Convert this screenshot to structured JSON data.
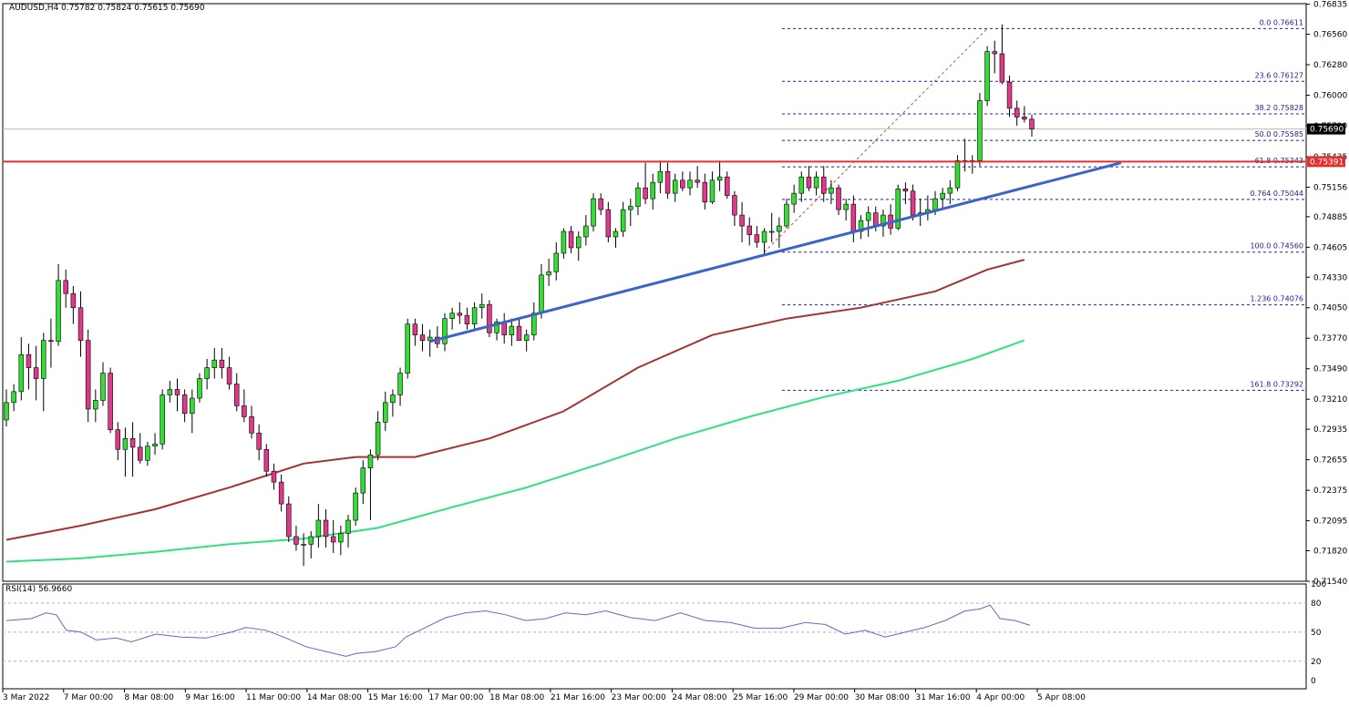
{
  "header": {
    "symbol_line": "AUDUSD,H4  0.75782 0.75824 0.75615 0.75690",
    "rsi_label": "RSI(14) 56.9660"
  },
  "colors": {
    "bull": "#33dd33",
    "bear": "#e0388a",
    "wick": "#000000",
    "sma100": "#a83030",
    "sma200": "#33e080",
    "trendline": "#3a64c8",
    "resistance": "#e53030",
    "fib": "#2020a0",
    "rsi": "#8a58b8"
  },
  "chart_data": [
    {
      "type": "candlestick",
      "symbol": "AUDUSD",
      "timeframe": "H4",
      "ylim": [
        0.7154,
        0.7684
      ],
      "price_ticks": [
        "0.76835",
        "0.76560",
        "0.76280",
        "0.76000",
        "0.75720",
        "0.75435",
        "0.75156",
        "0.74885",
        "0.74605",
        "0.74330",
        "0.74050",
        "0.73770",
        "0.73490",
        "0.73210",
        "0.72935",
        "0.72655",
        "0.72375",
        "0.72095",
        "0.71820",
        "0.71540"
      ],
      "x_labels": [
        "3 Mar 2022",
        "7 Mar 00:00",
        "8 Mar 08:00",
        "9 Mar 16:00",
        "11 Mar 00:00",
        "14 Mar 08:00",
        "15 Mar 16:00",
        "17 Mar 00:00",
        "18 Mar 08:00",
        "21 Mar 16:00",
        "23 Mar 00:00",
        "24 Mar 08:00",
        "25 Mar 16:00",
        "29 Mar 00:00",
        "30 Mar 08:00",
        "31 Mar 16:00",
        "4 Apr 00:00",
        "5 Apr 08:00"
      ],
      "candles": [
        [
          0.7302,
          0.733,
          0.7296,
          0.7318
        ],
        [
          0.7318,
          0.7335,
          0.731,
          0.7328
        ],
        [
          0.7328,
          0.7378,
          0.732,
          0.7362
        ],
        [
          0.7362,
          0.7372,
          0.733,
          0.735
        ],
        [
          0.735,
          0.737,
          0.732,
          0.734
        ],
        [
          0.734,
          0.7382,
          0.731,
          0.7375
        ],
        [
          0.7375,
          0.7395,
          0.735,
          0.7374
        ],
        [
          0.7374,
          0.7445,
          0.737,
          0.743
        ],
        [
          0.743,
          0.744,
          0.7405,
          0.7418
        ],
        [
          0.7418,
          0.7425,
          0.739,
          0.7405
        ],
        [
          0.7405,
          0.742,
          0.736,
          0.7375
        ],
        [
          0.7375,
          0.7385,
          0.73,
          0.7312
        ],
        [
          0.7312,
          0.733,
          0.73,
          0.732
        ],
        [
          0.732,
          0.7355,
          0.7315,
          0.7345
        ],
        [
          0.7345,
          0.735,
          0.729,
          0.7293
        ],
        [
          0.7293,
          0.73,
          0.7265,
          0.7275
        ],
        [
          0.7275,
          0.7295,
          0.725,
          0.7285
        ],
        [
          0.7285,
          0.73,
          0.725,
          0.7277
        ],
        [
          0.7277,
          0.729,
          0.7262,
          0.7265
        ],
        [
          0.7265,
          0.7282,
          0.726,
          0.7278
        ],
        [
          0.7278,
          0.729,
          0.727,
          0.728
        ],
        [
          0.728,
          0.733,
          0.7275,
          0.7325
        ],
        [
          0.7325,
          0.7338,
          0.7318,
          0.733
        ],
        [
          0.733,
          0.734,
          0.731,
          0.7325
        ],
        [
          0.7325,
          0.733,
          0.73,
          0.7308
        ],
        [
          0.7308,
          0.733,
          0.729,
          0.7322
        ],
        [
          0.7322,
          0.7345,
          0.7318,
          0.734
        ],
        [
          0.734,
          0.7358,
          0.733,
          0.735
        ],
        [
          0.735,
          0.7368,
          0.734,
          0.7357
        ],
        [
          0.7357,
          0.7368,
          0.734,
          0.735
        ],
        [
          0.735,
          0.736,
          0.733,
          0.7335
        ],
        [
          0.7335,
          0.7345,
          0.731,
          0.7315
        ],
        [
          0.7315,
          0.733,
          0.73,
          0.7305
        ],
        [
          0.7305,
          0.7315,
          0.7285,
          0.729
        ],
        [
          0.729,
          0.7298,
          0.7265,
          0.7275
        ],
        [
          0.7275,
          0.728,
          0.725,
          0.7255
        ],
        [
          0.7255,
          0.7262,
          0.7238,
          0.7245
        ],
        [
          0.7245,
          0.7252,
          0.7218,
          0.7225
        ],
        [
          0.7225,
          0.7232,
          0.719,
          0.7195
        ],
        [
          0.7195,
          0.7205,
          0.7182,
          0.7188
        ],
        [
          0.7188,
          0.7198,
          0.7168,
          0.7188
        ],
        [
          0.7188,
          0.72,
          0.7175,
          0.7195
        ],
        [
          0.7195,
          0.7225,
          0.7185,
          0.721
        ],
        [
          0.721,
          0.722,
          0.7185,
          0.7195
        ],
        [
          0.7195,
          0.721,
          0.718,
          0.719
        ],
        [
          0.719,
          0.7205,
          0.7178,
          0.7198
        ],
        [
          0.7198,
          0.7215,
          0.7185,
          0.721
        ],
        [
          0.721,
          0.724,
          0.7205,
          0.7235
        ],
        [
          0.7235,
          0.7265,
          0.7225,
          0.7258
        ],
        [
          0.7258,
          0.7275,
          0.721,
          0.727
        ],
        [
          0.727,
          0.731,
          0.7265,
          0.73
        ],
        [
          0.73,
          0.7328,
          0.7292,
          0.7318
        ],
        [
          0.7318,
          0.733,
          0.7305,
          0.7325
        ],
        [
          0.7325,
          0.735,
          0.7315,
          0.7345
        ],
        [
          0.7345,
          0.7395,
          0.734,
          0.739
        ],
        [
          0.739,
          0.7395,
          0.737,
          0.738
        ],
        [
          0.738,
          0.739,
          0.7365,
          0.7375
        ],
        [
          0.7375,
          0.7385,
          0.736,
          0.7378
        ],
        [
          0.7378,
          0.7388,
          0.7368,
          0.7372
        ],
        [
          0.7372,
          0.74,
          0.7365,
          0.7395
        ],
        [
          0.7395,
          0.7405,
          0.7385,
          0.74
        ],
        [
          0.74,
          0.741,
          0.739,
          0.7398
        ],
        [
          0.7398,
          0.7405,
          0.7385,
          0.739
        ],
        [
          0.739,
          0.741,
          0.7385,
          0.7405
        ],
        [
          0.7405,
          0.7418,
          0.7395,
          0.7408
        ],
        [
          0.7408,
          0.7412,
          0.7378,
          0.7382
        ],
        [
          0.7382,
          0.7395,
          0.7375,
          0.7392
        ],
        [
          0.7392,
          0.74,
          0.7372,
          0.738
        ],
        [
          0.738,
          0.7395,
          0.737,
          0.7388
        ],
        [
          0.7388,
          0.7395,
          0.7375,
          0.7375
        ],
        [
          0.7375,
          0.7385,
          0.7365,
          0.738
        ],
        [
          0.738,
          0.741,
          0.7375,
          0.74
        ],
        [
          0.74,
          0.7445,
          0.7395,
          0.7435
        ],
        [
          0.7435,
          0.745,
          0.7425,
          0.7438
        ],
        [
          0.7438,
          0.7465,
          0.743,
          0.7455
        ],
        [
          0.7455,
          0.7478,
          0.745,
          0.7475
        ],
        [
          0.7475,
          0.748,
          0.7455,
          0.746
        ],
        [
          0.746,
          0.7475,
          0.7448,
          0.747
        ],
        [
          0.747,
          0.749,
          0.7462,
          0.748
        ],
        [
          0.748,
          0.751,
          0.7475,
          0.7505
        ],
        [
          0.7505,
          0.751,
          0.749,
          0.7495
        ],
        [
          0.7495,
          0.7502,
          0.7465,
          0.747
        ],
        [
          0.747,
          0.7478,
          0.746,
          0.7475
        ],
        [
          0.7475,
          0.7502,
          0.747,
          0.7495
        ],
        [
          0.7495,
          0.7505,
          0.748,
          0.7498
        ],
        [
          0.7498,
          0.752,
          0.749,
          0.7515
        ],
        [
          0.7515,
          0.7538,
          0.75,
          0.7505
        ],
        [
          0.7505,
          0.7528,
          0.7495,
          0.752
        ],
        [
          0.752,
          0.754,
          0.751,
          0.753
        ],
        [
          0.753,
          0.7538,
          0.7505,
          0.751
        ],
        [
          0.751,
          0.7528,
          0.7502,
          0.7522
        ],
        [
          0.7522,
          0.753,
          0.7512,
          0.7515
        ],
        [
          0.7515,
          0.753,
          0.7508,
          0.7522
        ],
        [
          0.7522,
          0.7535,
          0.7515,
          0.752
        ],
        [
          0.752,
          0.7528,
          0.7495,
          0.7502
        ],
        [
          0.7502,
          0.753,
          0.75,
          0.7522
        ],
        [
          0.7522,
          0.754,
          0.7512,
          0.7525
        ],
        [
          0.7525,
          0.753,
          0.7505,
          0.7508
        ],
        [
          0.7508,
          0.7512,
          0.748,
          0.749
        ],
        [
          0.749,
          0.7502,
          0.7465,
          0.748
        ],
        [
          0.748,
          0.7488,
          0.7462,
          0.7472
        ],
        [
          0.7472,
          0.748,
          0.746,
          0.7465
        ],
        [
          0.7465,
          0.7478,
          0.7452,
          0.7475
        ],
        [
          0.7475,
          0.7492,
          0.7465,
          0.7475
        ],
        [
          0.7475,
          0.7488,
          0.746,
          0.748
        ],
        [
          0.748,
          0.7505,
          0.7478,
          0.75
        ],
        [
          0.75,
          0.7518,
          0.7492,
          0.751
        ],
        [
          0.751,
          0.753,
          0.7502,
          0.7525
        ],
        [
          0.7525,
          0.7535,
          0.7512,
          0.7515
        ],
        [
          0.7515,
          0.753,
          0.7508,
          0.7525
        ],
        [
          0.7525,
          0.7535,
          0.7502,
          0.751
        ],
        [
          0.751,
          0.7522,
          0.75,
          0.7515
        ],
        [
          0.7515,
          0.7518,
          0.749,
          0.7495
        ],
        [
          0.7495,
          0.7505,
          0.7485,
          0.75
        ],
        [
          0.75,
          0.7508,
          0.7465,
          0.7475
        ],
        [
          0.7475,
          0.749,
          0.7468,
          0.7485
        ],
        [
          0.7485,
          0.7498,
          0.747,
          0.7492
        ],
        [
          0.7492,
          0.7498,
          0.7475,
          0.748
        ],
        [
          0.748,
          0.7495,
          0.747,
          0.749
        ],
        [
          0.749,
          0.75,
          0.7472,
          0.7478
        ],
        [
          0.7478,
          0.7518,
          0.7476,
          0.7514
        ],
        [
          0.7514,
          0.752,
          0.75,
          0.7512
        ],
        [
          0.7512,
          0.7518,
          0.7485,
          0.749
        ],
        [
          0.749,
          0.7505,
          0.748,
          0.7492
        ],
        [
          0.7492,
          0.7508,
          0.7485,
          0.7495
        ],
        [
          0.7495,
          0.7512,
          0.749,
          0.7505
        ],
        [
          0.7505,
          0.7515,
          0.7495,
          0.751
        ],
        [
          0.751,
          0.7522,
          0.75,
          0.7515
        ],
        [
          0.7515,
          0.7545,
          0.7512,
          0.754
        ],
        [
          0.754,
          0.756,
          0.753,
          0.754
        ],
        [
          0.754,
          0.7545,
          0.7528,
          0.754
        ],
        [
          0.754,
          0.7602,
          0.7535,
          0.7595
        ],
        [
          0.7595,
          0.7645,
          0.759,
          0.764
        ],
        [
          0.764,
          0.765,
          0.762,
          0.7638
        ],
        [
          0.7638,
          0.7665,
          0.761,
          0.7612
        ],
        [
          0.7612,
          0.7618,
          0.758,
          0.7588
        ],
        [
          0.7588,
          0.7595,
          0.7572,
          0.758
        ],
        [
          0.758,
          0.759,
          0.7575,
          0.7578
        ],
        [
          0.7578,
          0.7582,
          0.7562,
          0.7569
        ]
      ],
      "sma100": [
        [
          0,
          0.7192
        ],
        [
          10,
          0.7205
        ],
        [
          20,
          0.722
        ],
        [
          30,
          0.724
        ],
        [
          40,
          0.7262
        ],
        [
          47,
          0.7268
        ],
        [
          55,
          0.7268
        ],
        [
          65,
          0.7285
        ],
        [
          75,
          0.731
        ],
        [
          85,
          0.735
        ],
        [
          95,
          0.738
        ],
        [
          105,
          0.7395
        ],
        [
          115,
          0.7405
        ],
        [
          125,
          0.742
        ],
        [
          132,
          0.744
        ],
        [
          137,
          0.7449
        ]
      ],
      "sma200": [
        [
          0,
          0.7172
        ],
        [
          10,
          0.7175
        ],
        [
          20,
          0.7181
        ],
        [
          30,
          0.7188
        ],
        [
          40,
          0.7193
        ],
        [
          50,
          0.7203
        ],
        [
          60,
          0.7222
        ],
        [
          70,
          0.724
        ],
        [
          80,
          0.7262
        ],
        [
          90,
          0.7285
        ],
        [
          100,
          0.7305
        ],
        [
          110,
          0.7323
        ],
        [
          120,
          0.7338
        ],
        [
          130,
          0.7358
        ],
        [
          137,
          0.7375
        ]
      ],
      "trendline": [
        [
          57,
          0.7374
        ],
        [
          150,
          0.7538
        ]
      ],
      "resistance": 0.75391,
      "fib_line": [
        [
          102,
          0.7456
        ],
        [
          132,
          0.7661
        ]
      ],
      "fib_levels": [
        {
          "label": "0.0  0.76611",
          "value": 0.76611
        },
        {
          "label": "23.6  0.76127",
          "value": 0.76127
        },
        {
          "label": "38.2  0.75828",
          "value": 0.75828
        },
        {
          "label": "50.0  0.75585",
          "value": 0.75585
        },
        {
          "label": "61.8  0.75343",
          "value": 0.75343
        },
        {
          "label": "0.764  0.75044",
          "value": 0.75044
        },
        {
          "label": "100.0  0.74560",
          "value": 0.7456
        },
        {
          "label": "1.236  0.74076",
          "value": 0.74076
        },
        {
          "label": "161.8  0.73292",
          "value": 0.73292
        }
      ],
      "current_price": "0.75690",
      "resistance_label": "0.75391"
    },
    {
      "type": "line",
      "name": "RSI(14)",
      "ylim": [
        0,
        100
      ],
      "ticks": [
        "100",
        "80",
        "50",
        "20",
        "0"
      ],
      "levels": [
        80,
        50,
        20
      ],
      "values": [
        [
          0,
          62
        ],
        [
          5,
          64
        ],
        [
          8,
          70
        ],
        [
          10,
          68
        ],
        [
          12,
          52
        ],
        [
          15,
          50
        ],
        [
          18,
          42
        ],
        [
          22,
          44
        ],
        [
          25,
          40
        ],
        [
          30,
          48
        ],
        [
          35,
          45
        ],
        [
          40,
          44
        ],
        [
          45,
          50
        ],
        [
          48,
          55
        ],
        [
          52,
          52
        ],
        [
          56,
          44
        ],
        [
          60,
          35
        ],
        [
          64,
          30
        ],
        [
          68,
          25
        ],
        [
          70,
          28
        ],
        [
          74,
          30
        ],
        [
          78,
          35
        ],
        [
          80,
          45
        ],
        [
          84,
          55
        ],
        [
          88,
          65
        ],
        [
          92,
          70
        ],
        [
          96,
          72
        ],
        [
          100,
          68
        ],
        [
          104,
          62
        ],
        [
          108,
          64
        ],
        [
          112,
          70
        ],
        [
          116,
          68
        ],
        [
          120,
          72
        ],
        [
          125,
          65
        ],
        [
          130,
          62
        ],
        [
          135,
          70
        ],
        [
          140,
          62
        ],
        [
          145,
          60
        ],
        [
          150,
          54
        ],
        [
          155,
          54
        ],
        [
          160,
          60
        ],
        [
          164,
          58
        ],
        [
          168,
          48
        ],
        [
          172,
          52
        ],
        [
          176,
          45
        ],
        [
          180,
          50
        ],
        [
          184,
          55
        ],
        [
          188,
          62
        ],
        [
          192,
          72
        ],
        [
          195,
          74
        ],
        [
          197,
          78
        ],
        [
          199,
          64
        ],
        [
          202,
          62
        ],
        [
          205,
          57
        ]
      ]
    }
  ]
}
